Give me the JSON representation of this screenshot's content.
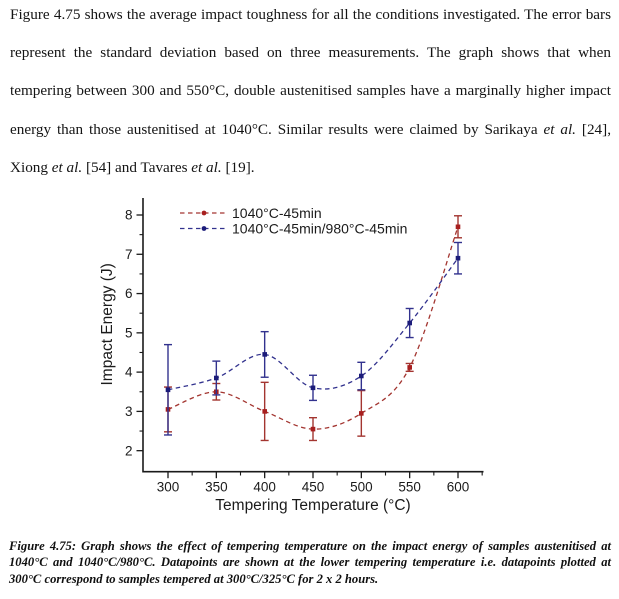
{
  "page": {
    "intro_segments": [
      {
        "text": "Figure 4.75 shows the average impact toughness for all the conditions investigated. The error bars represent the standard deviation based on three measurements. The graph shows that when tempering between 300 and 550°C, double austenitised samples have a marginally higher impact energy than those austenitised at 1040°C.  Similar results were claimed by Sarikaya ",
        "italic": false
      },
      {
        "text": "et al.",
        "italic": true
      },
      {
        "text": " [24], Xiong ",
        "italic": false
      },
      {
        "text": "et al.",
        "italic": true
      },
      {
        "text": " [54] and Tavares ",
        "italic": false
      },
      {
        "text": "et al.",
        "italic": true
      },
      {
        "text": " [19].",
        "italic": false
      }
    ],
    "caption": "Figure 4.75: Graph shows the effect of tempering temperature on the impact energy of samples austenitised at 1040°C and 1040°C/980°C. Datapoints are shown at the lower tempering temperature i.e. datapoints plotted at 300°C correspond to samples tempered at 300°C/325°C for 2 x 2 hours."
  },
  "chart_data": {
    "type": "scatter",
    "line_style": "dashed-smooth",
    "x": [
      300,
      350,
      400,
      450,
      500,
      550,
      600
    ],
    "series": [
      {
        "name": "1040°C-45min",
        "color": "#a33530",
        "marker_color": "#a81f1f",
        "values": [
          3.05,
          3.5,
          3.0,
          2.55,
          2.95,
          4.12,
          7.7
        ],
        "errors": [
          0.57,
          0.21,
          0.74,
          0.29,
          0.58,
          0.1,
          0.28
        ]
      },
      {
        "name": "1040°C-45min/980°C-45min",
        "color": "#32328e",
        "marker_color": "#1c1c7a",
        "values": [
          3.55,
          3.85,
          4.45,
          3.6,
          3.9,
          5.25,
          6.9
        ],
        "errors": [
          1.15,
          0.43,
          0.58,
          0.32,
          0.35,
          0.37,
          0.4
        ]
      }
    ],
    "xlabel": "Tempering Temperature (°C)",
    "ylabel": "Impact Energy (J)",
    "xlim": [
      275,
      629
    ],
    "ylim": [
      1.47,
      8.43
    ],
    "x_major_ticks": [
      300,
      350,
      400,
      450,
      500,
      550,
      600
    ],
    "x_minor_step": 25,
    "y_major_ticks": [
      2,
      3,
      4,
      5,
      6,
      7,
      8
    ],
    "y_minor_step": 0.5,
    "grid": false,
    "legend_position": "top-left-inside",
    "axis_color": "#1a1a1a",
    "text_color": "#1b1b1b"
  }
}
